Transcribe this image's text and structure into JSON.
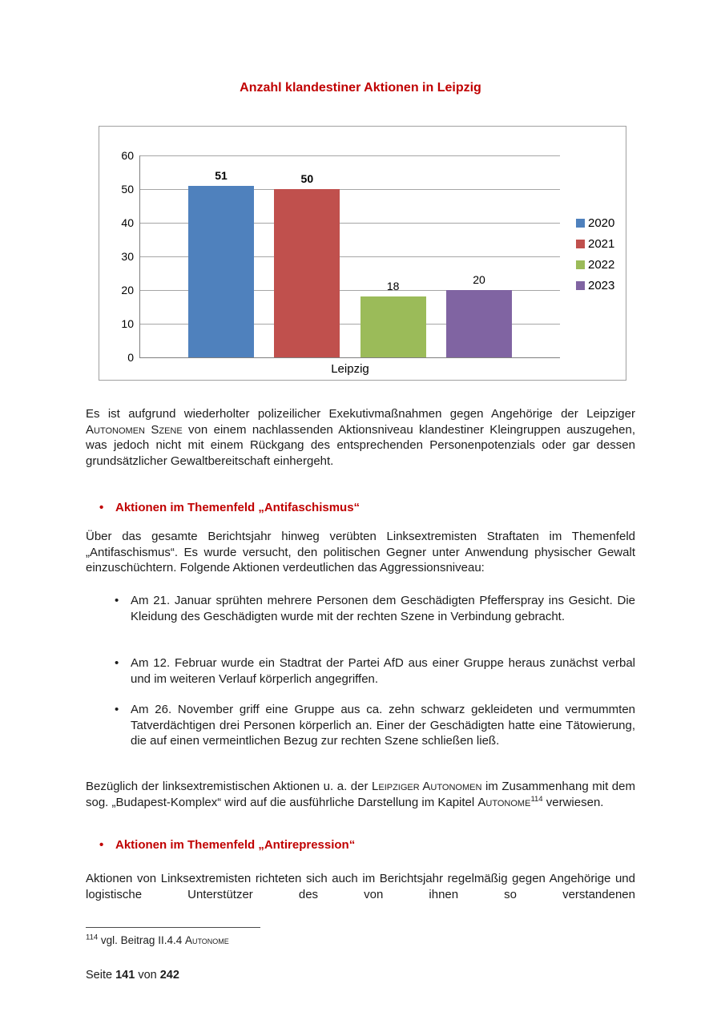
{
  "colors": {
    "accent_red": "#C00000",
    "bar_blue": "#4F81BD",
    "bar_red": "#C0504D",
    "bar_green": "#9BBB59",
    "bar_purple": "#8064A2"
  },
  "chart_data": {
    "type": "bar",
    "title": "Anzahl klandestiner Aktionen in Leipzig",
    "categories": [
      "Leipzig"
    ],
    "series": [
      {
        "name": "2020",
        "values": [
          51
        ],
        "color": "#4F81BD",
        "label_bold": true
      },
      {
        "name": "2021",
        "values": [
          50
        ],
        "color": "#C0504D",
        "label_bold": true
      },
      {
        "name": "2022",
        "values": [
          18
        ],
        "color": "#9BBB59",
        "label_bold": false
      },
      {
        "name": "2023",
        "values": [
          20
        ],
        "color": "#8064A2",
        "label_bold": false
      }
    ],
    "xlabel": "",
    "ylabel": "",
    "ylim": [
      0,
      60
    ],
    "yticks": [
      0,
      10,
      20,
      30,
      40,
      50,
      60
    ],
    "grid": true,
    "legend_position": "right"
  },
  "body": {
    "bullet_marker": "•",
    "p_intro": [
      {
        "t": "Es ist aufgrund wiederholter polizeilicher Exekutivmaßnahmen gegen Angehörige der Leipziger ",
        "s": "plain"
      },
      {
        "t": "Autonomen Szene",
        "s": "sc"
      },
      {
        "t": " von einem nachlassenden Aktionsniveau klandestiner Kleingruppen auszugehen, was jedoch nicht mit einem Rückgang des entsprechenden Personenpotenzials oder gar dessen grundsätzlicher Gewaltbereitschaft einhergeht.",
        "s": "plain"
      }
    ],
    "h_antifa": {
      "bullet": "•",
      "text": "Aktionen im Themenfeld „Antifaschismus“"
    },
    "p_antifa": "Über das gesamte Berichtsjahr hinweg verübten Linksextremisten Straftaten im Themenfeld „Antifaschismus“. Es wurde versucht, den politischen Gegner unter Anwendung physischer Gewalt einzuschüchtern. Folgende Aktionen verdeutlichen das Aggressionsniveau:",
    "b1": "Am 21. Januar sprühten mehrere Personen dem Geschädigten Pfefferspray ins Gesicht. Die Kleidung des Geschädigten wurde mit der rechten Szene in Verbindung gebracht.",
    "b2": "Am 12. Februar wurde ein Stadtrat der Partei AfD aus einer Gruppe heraus zunächst verbal und im weiteren Verlauf körperlich angegriffen.",
    "b3": "Am 26. November griff eine Gruppe aus ca. zehn schwarz gekleideten und vermummten Tatverdächtigen drei Personen körperlich an. Einer der Geschädigten hatte eine Tätowierung, die auf einen vermeintlichen Bezug zur rechten Szene schließen ließ.",
    "p_budapest": [
      {
        "t": "Bezüglich der linksextremistischen Aktionen u. a. der ",
        "s": "plain"
      },
      {
        "t": "Leipziger Autonomen",
        "s": "sc"
      },
      {
        "t": " im Zusammenhang mit dem sog. „Budapest-Komplex“ wird auf die ausführliche Darstellung im Kapitel ",
        "s": "plain"
      },
      {
        "t": "Autonome",
        "s": "sc"
      },
      {
        "t": "114",
        "s": "sup"
      },
      {
        "t": " verwiesen.",
        "s": "plain"
      }
    ],
    "h_antirep": {
      "bullet": "•",
      "text": "Aktionen im Themenfeld „Antirepression“"
    },
    "p_antirep": "Aktionen von Linksextremisten richteten sich auch im Berichtsjahr regelmäßig gegen Angehörige und logistische Unterstützer des von ihnen so verstandenen",
    "footnote": [
      {
        "t": "114",
        "s": "sup"
      },
      {
        "t": " vgl. Beitrag II.4.4 ",
        "s": "plain"
      },
      {
        "t": "Autonome",
        "s": "sc"
      }
    ],
    "footer": [
      {
        "t": "Seite ",
        "s": "plain"
      },
      {
        "t": "141",
        "s": "b"
      },
      {
        "t": " von ",
        "s": "plain"
      },
      {
        "t": "242",
        "s": "b"
      }
    ]
  }
}
